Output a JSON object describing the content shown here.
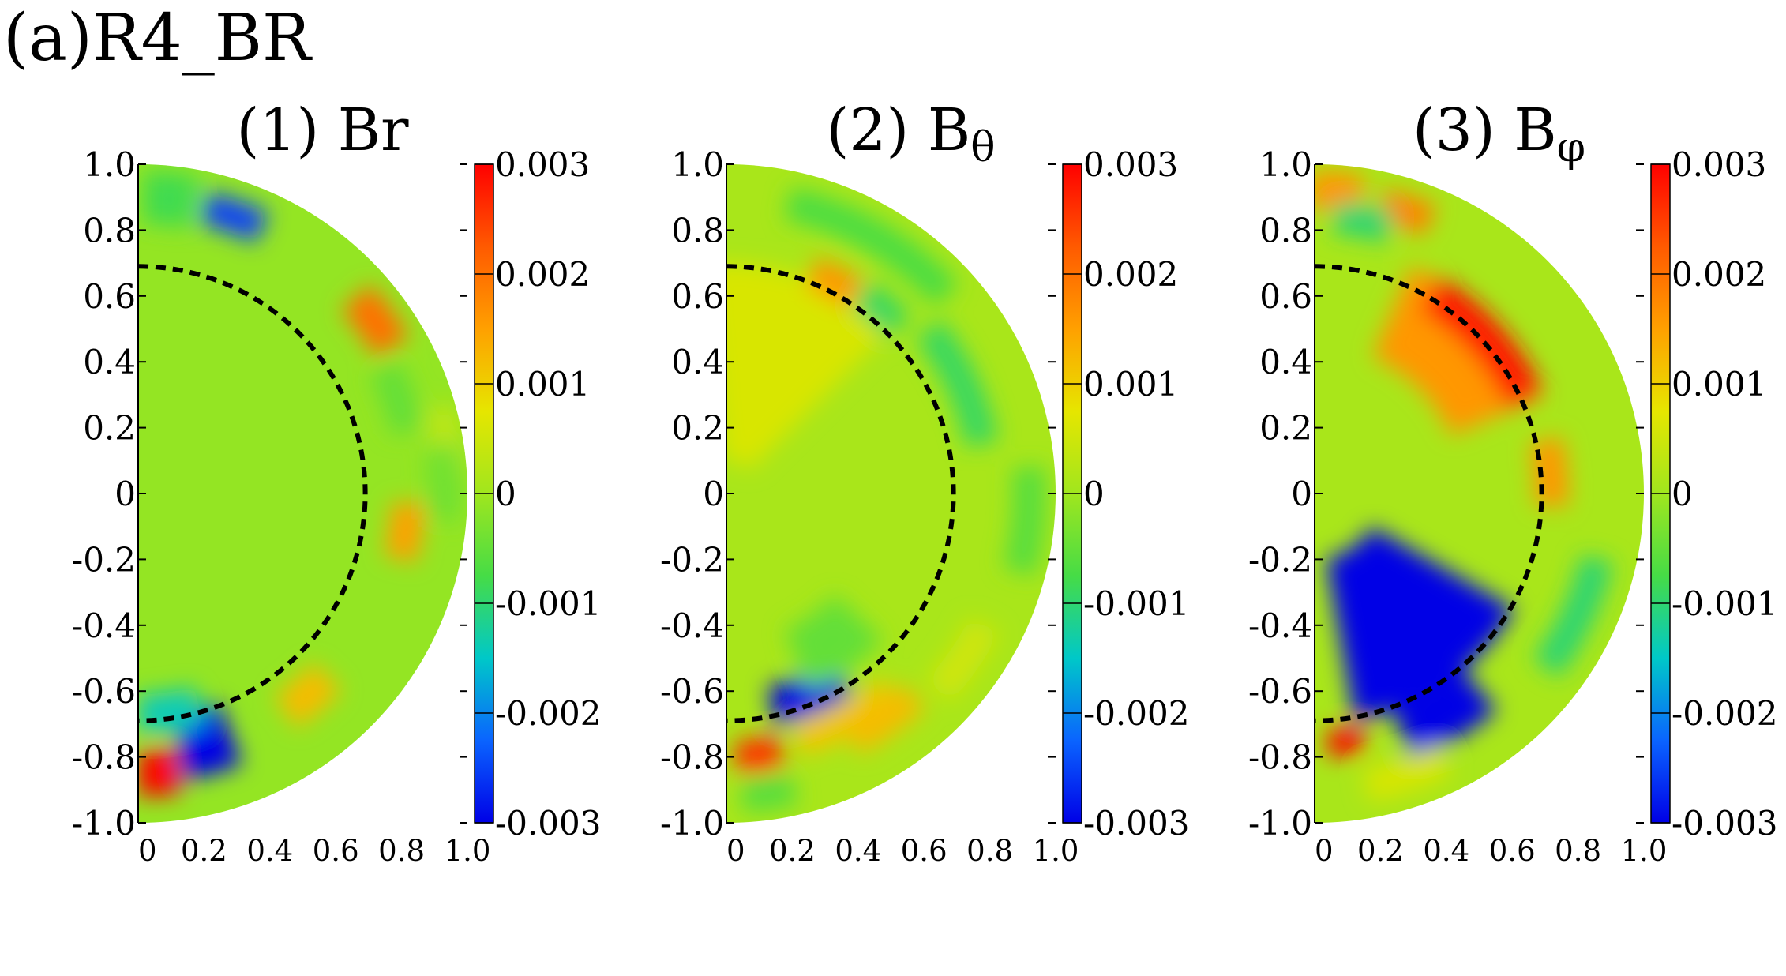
{
  "figure_title": "(a)R4_BR",
  "colormap": [
    "#0000e6",
    "#0a64ff",
    "#00c8c8",
    "#46dc46",
    "#a0e61e",
    "#e6e600",
    "#ffa000",
    "#ff5a00",
    "#ff0000"
  ],
  "colorbar": {
    "range": [
      -0.003,
      0.003
    ],
    "tick_labels": [
      "0.003",
      "0.002",
      "0.001",
      "0",
      "-0.001",
      "-0.002",
      "-0.003"
    ],
    "tick_values": [
      0.003,
      0.002,
      0.001,
      0,
      -0.001,
      -0.002,
      -0.003
    ]
  },
  "panels": [
    {
      "title": "(1) Br",
      "symbol": "Br",
      "subscript": ""
    },
    {
      "title": "(2) Bθ",
      "symbol": "B",
      "subscript": "θ"
    },
    {
      "title": "(3) Bφ",
      "symbol": "B",
      "subscript": "φ"
    }
  ],
  "chart_data": [
    {
      "type": "heatmap",
      "title": "(1) Br",
      "xlim": [
        0,
        1.0
      ],
      "ylim": [
        -1.0,
        1.0
      ],
      "x_tick_labels": [
        "0",
        "0.2",
        "0.4",
        "0.6",
        "0.8",
        "1.0"
      ],
      "y_tick_labels": [
        "1.0",
        "0.8",
        "0.6",
        "0.4",
        "0.2",
        "0",
        "-0.2",
        "-0.4",
        "-0.6",
        "-0.8",
        "-1.0"
      ],
      "domain": "half-disk, radius 1.0",
      "dashed_circle_radius": 0.69,
      "background_value": -0.0001,
      "features": [
        {
          "r": 0.89,
          "theta_deg": 71,
          "dr": 0.05,
          "dt": 6,
          "value": -0.0025
        },
        {
          "r": 0.89,
          "theta_deg": 36,
          "dr": 0.06,
          "dt": 6,
          "value": 0.002
        },
        {
          "r": 0.95,
          "theta_deg": 10,
          "dr": 0.05,
          "dt": 6,
          "value": 0.0003
        },
        {
          "r": 0.93,
          "theta_deg": 2,
          "dr": 0.05,
          "dt": 7,
          "value": -0.0004
        },
        {
          "r": 0.82,
          "theta_deg": -8,
          "dr": 0.05,
          "dt": 6,
          "value": 0.0015
        },
        {
          "r": 0.8,
          "theta_deg": -50,
          "dr": 0.06,
          "dt": 6,
          "value": 0.0012
        },
        {
          "r": 0.78,
          "theta_deg": -75,
          "dr": 0.1,
          "dt": 6,
          "value": -0.003
        },
        {
          "r": 0.85,
          "theta_deg": -86,
          "dr": 0.07,
          "dt": 4,
          "value": 0.003
        },
        {
          "r": 0.67,
          "theta_deg": -82,
          "dr": 0.06,
          "dt": 8,
          "value": -0.0014
        },
        {
          "r": 0.9,
          "theta_deg": 84,
          "dr": 0.08,
          "dt": 5,
          "value": -0.0008
        },
        {
          "r": 0.84,
          "theta_deg": 20,
          "dr": 0.05,
          "dt": 7,
          "value": -0.0005
        }
      ]
    },
    {
      "type": "heatmap",
      "title": "(2) Bθ",
      "xlim": [
        0,
        1.0
      ],
      "ylim": [
        -1.0,
        1.0
      ],
      "x_tick_labels": [
        "0",
        "0.2",
        "0.4",
        "0.6",
        "0.8",
        "1.0"
      ],
      "y_tick_labels": [
        "1.0",
        "0.8",
        "0.6",
        "0.4",
        "0.2",
        "0",
        "-0.2",
        "-0.4",
        "-0.6",
        "-0.8",
        "-1.0"
      ],
      "domain": "half-disk, radius 1.0",
      "dashed_circle_radius": 0.69,
      "background_value": 0.0001,
      "features": [
        {
          "r": 0.4,
          "theta_deg": 70,
          "dr": 0.3,
          "dt": 25,
          "value": 0.0006
        },
        {
          "r": 0.72,
          "theta_deg": 63,
          "dr": 0.05,
          "dt": 6,
          "value": 0.0016
        },
        {
          "r": 0.73,
          "theta_deg": 50,
          "dr": 0.05,
          "dt": 6,
          "value": -0.0009
        },
        {
          "r": 0.79,
          "theta_deg": 25,
          "dr": 0.05,
          "dt": 14,
          "value": -0.0009
        },
        {
          "r": 0.9,
          "theta_deg": 60,
          "dr": 0.05,
          "dt": 18,
          "value": -0.0007
        },
        {
          "r": 0.66,
          "theta_deg": -68,
          "dr": 0.06,
          "dt": 10,
          "value": -0.003
        },
        {
          "r": 0.78,
          "theta_deg": -62,
          "dr": 0.05,
          "dt": 12,
          "value": 0.0011
        },
        {
          "r": 0.84,
          "theta_deg": -55,
          "dr": 0.05,
          "dt": 8,
          "value": 0.0012
        },
        {
          "r": 0.8,
          "theta_deg": -83,
          "dr": 0.05,
          "dt": 5,
          "value": 0.0026
        },
        {
          "r": 0.92,
          "theta_deg": -82,
          "dr": 0.05,
          "dt": 5,
          "value": -0.0006
        },
        {
          "r": 0.92,
          "theta_deg": -5,
          "dr": 0.05,
          "dt": 10,
          "value": -0.0006
        },
        {
          "r": 0.55,
          "theta_deg": -55,
          "dr": 0.1,
          "dt": 12,
          "value": -0.0005
        },
        {
          "r": 0.88,
          "theta_deg": -35,
          "dr": 0.05,
          "dt": 8,
          "value": 0.0005
        }
      ]
    },
    {
      "type": "heatmap",
      "title": "(3) Bφ",
      "xlim": [
        0,
        1.0
      ],
      "ylim": [
        -1.0,
        1.0
      ],
      "x_tick_labels": [
        "0",
        "0.2",
        "0.4",
        "0.6",
        "0.8",
        "1.0"
      ],
      "y_tick_labels": [
        "1.0",
        "0.8",
        "0.6",
        "0.4",
        "0.2",
        "0",
        "-0.2",
        "-0.4",
        "-0.6",
        "-0.8",
        "-1.0"
      ],
      "domain": "half-disk, radius 1.0",
      "dashed_circle_radius": 0.69,
      "background_value": 0.0001,
      "features": [
        {
          "r": 0.6,
          "theta_deg": 45,
          "dr": 0.15,
          "dt": 22,
          "value": 0.0016
        },
        {
          "r": 0.7,
          "theta_deg": 42,
          "dr": 0.06,
          "dt": 18,
          "value": 0.0028
        },
        {
          "r": 0.72,
          "theta_deg": 5,
          "dr": 0.05,
          "dt": 8,
          "value": 0.0016
        },
        {
          "r": 0.92,
          "theta_deg": 86,
          "dr": 0.06,
          "dt": 5,
          "value": 0.0016
        },
        {
          "r": 0.9,
          "theta_deg": 72,
          "dr": 0.05,
          "dt": 5,
          "value": 0.0018
        },
        {
          "r": 0.84,
          "theta_deg": 80,
          "dr": 0.05,
          "dt": 6,
          "value": -0.001
        },
        {
          "r": 0.45,
          "theta_deg": -55,
          "dr": 0.25,
          "dt": 25,
          "value": -0.003
        },
        {
          "r": 0.78,
          "theta_deg": -60,
          "dr": 0.08,
          "dt": 10,
          "value": -0.003
        },
        {
          "r": 0.76,
          "theta_deg": -83,
          "dr": 0.04,
          "dt": 4,
          "value": 0.003
        },
        {
          "r": 0.88,
          "theta_deg": -25,
          "dr": 0.05,
          "dt": 12,
          "value": -0.001
        },
        {
          "r": 0.9,
          "theta_deg": -72,
          "dr": 0.05,
          "dt": 8,
          "value": 0.0006
        }
      ]
    }
  ]
}
